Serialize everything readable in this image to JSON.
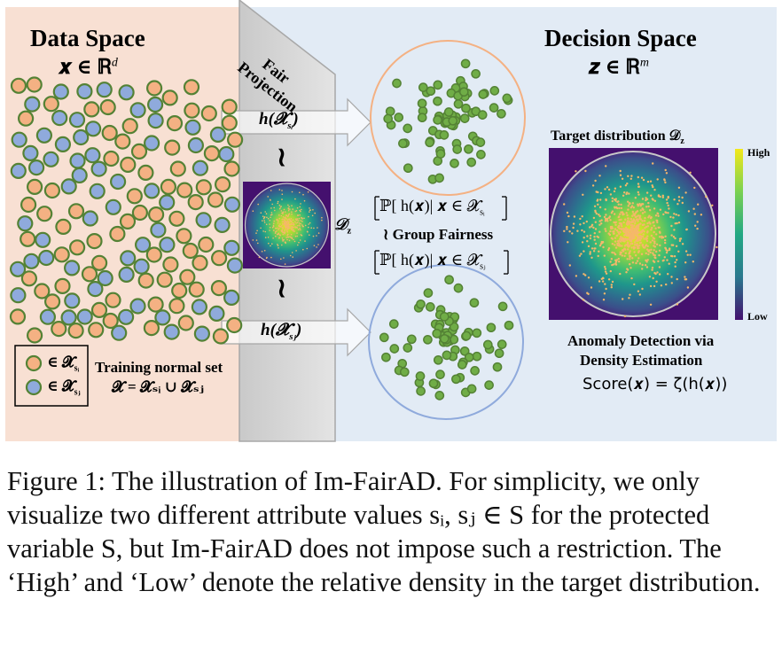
{
  "data_space": {
    "title": "Data Space",
    "formula": "𝒙 ∈ ℝ",
    "formula_sup": "d"
  },
  "projection": {
    "title_line1": "Fair",
    "title_line2": "Projection",
    "map_top": "h(𝓧",
    "map_top_sub": "sᵢ",
    "map_bottom": "h(𝓧",
    "map_bottom_sub": "sⱼ",
    "approx": "≀",
    "dz_label": "𝒟",
    "dz_sub": "z"
  },
  "fairness": {
    "prob_i": "ℙ[ h(𝒙)| 𝒙 ∈ 𝓧",
    "prob_i_sub": "sᵢ",
    "prob_j": "ℙ[ h(𝒙)| 𝒙 ∈ 𝓧",
    "prob_j_sub": "sⱼ",
    "close": "]",
    "group_fairness": "≀ Group Fairness"
  },
  "decision_space": {
    "title": "Decision Space",
    "formula": "𝒛 ∈ ℝ",
    "formula_sup": "m",
    "target_label": "Target distribution 𝒟",
    "target_sub": "z",
    "colorbar_high": "High",
    "colorbar_low": "Low",
    "anomaly_line1": "Anomaly Detection via",
    "anomaly_line2": "Density Estimation",
    "score": "Score(𝒙) = ζ(h(𝒙))"
  },
  "legend": {
    "item_i": "∈ 𝓧",
    "item_i_sub": "sᵢ",
    "item_j": "∈ 𝓧",
    "item_j_sub": "sⱼ",
    "training_label": "Training normal set",
    "training_formula": "𝓧 = 𝓧ₛᵢ ∪ 𝓧ₛⱼ"
  },
  "colors": {
    "data_bg": "#f8e0d3",
    "decision_bg": "#e2ebf5",
    "orange_point": "#f4b183",
    "blue_point": "#8faadc",
    "green_point": "#70ad47",
    "point_border": "#548235",
    "orange_circle": "#f4b183",
    "blue_circle": "#8faadc",
    "density_dark": "#44106e",
    "density_light": "#f3e81a"
  },
  "caption": "Figure 1: The illustration of Im-FairAD. For simplicity, we only visualize two different attribute values sᵢ, sⱼ ∈ S for the protected variable S, but Im-FairAD does not impose such a restriction. The ‘High’ and ‘Low’ denote the relative density in the target distribution."
}
